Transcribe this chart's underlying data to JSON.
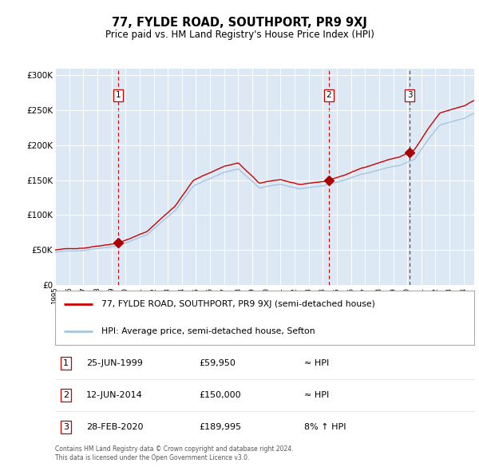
{
  "title": "77, FYLDE ROAD, SOUTHPORT, PR9 9XJ",
  "subtitle": "Price paid vs. HM Land Registry's House Price Index (HPI)",
  "background_color": "#ffffff",
  "plot_bg_color": "#dce9f5",
  "hpi_line_color": "#a8c4e0",
  "sale_line_color": "#cc0000",
  "sale_marker_color": "#aa0000",
  "vline_color": "#cc0000",
  "grid_color": "#ffffff",
  "legend_label_sale": "77, FYLDE ROAD, SOUTHPORT, PR9 9XJ (semi-detached house)",
  "legend_label_hpi": "HPI: Average price, semi-detached house, Sefton",
  "sales": [
    {
      "label": "1",
      "date_str": "25-JUN-1999",
      "date_num": 1999.48,
      "price": 59950,
      "hpi_rel": "≈ HPI"
    },
    {
      "label": "2",
      "date_str": "12-JUN-2014",
      "date_num": 2014.44,
      "price": 150000,
      "hpi_rel": "≈ HPI"
    },
    {
      "label": "3",
      "date_str": "28-FEB-2020",
      "date_num": 2020.16,
      "price": 189995,
      "hpi_rel": "8% ↑ HPI"
    }
  ],
  "footer_line1": "Contains HM Land Registry data © Crown copyright and database right 2024.",
  "footer_line2": "This data is licensed under the Open Government Licence v3.0.",
  "ylim": [
    0,
    310000
  ],
  "xlim_start": 1995.0,
  "xlim_end": 2024.75,
  "yticks": [
    0,
    50000,
    100000,
    150000,
    200000,
    250000,
    300000
  ],
  "ytick_labels": [
    "£0",
    "£50K",
    "£100K",
    "£150K",
    "£200K",
    "£250K",
    "£300K"
  ]
}
